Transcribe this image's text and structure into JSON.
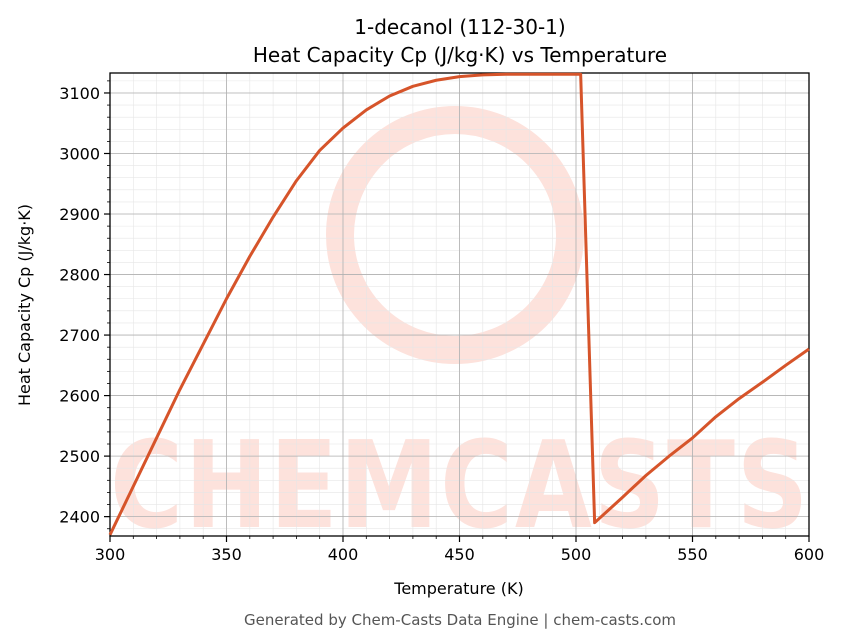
{
  "chart_data": {
    "type": "line",
    "title": "1-decanol (112-30-1)",
    "subtitle": "Heat Capacity Cp (J/kg·K) vs Temperature",
    "xlabel": "Temperature (K)",
    "ylabel": "Heat Capacity Cp (J/kg·K)",
    "xlim": [
      300,
      600
    ],
    "ylim": [
      2368,
      3133
    ],
    "x_ticks": [
      300,
      350,
      400,
      450,
      500,
      550,
      600
    ],
    "y_ticks": [
      2400,
      2500,
      2600,
      2700,
      2800,
      2900,
      3000,
      3100
    ],
    "grid": true,
    "line_color": "#d6542a",
    "series": [
      {
        "x": [
          300,
          310,
          320,
          330,
          340,
          350,
          360,
          370,
          380,
          390,
          400,
          410,
          420,
          430,
          440,
          450,
          460,
          470,
          480,
          490,
          500,
          502,
          508,
          520,
          530,
          540,
          550,
          560,
          570,
          580,
          590,
          600
        ],
        "y": [
          2370,
          2450,
          2530,
          2610,
          2685,
          2760,
          2830,
          2895,
          2955,
          3005,
          3042,
          3072,
          3095,
          3111,
          3121,
          3127,
          3130,
          3131,
          3131,
          3131,
          3131,
          3131,
          2390,
          2432,
          2468,
          2500,
          2530,
          2565,
          2595,
          2622,
          2650,
          2677
        ]
      }
    ]
  },
  "watermark": {
    "text": "CHEMCASTS",
    "color": "#fde2dc"
  },
  "footer": "Generated by Chem-Casts Data Engine | chem-casts.com"
}
